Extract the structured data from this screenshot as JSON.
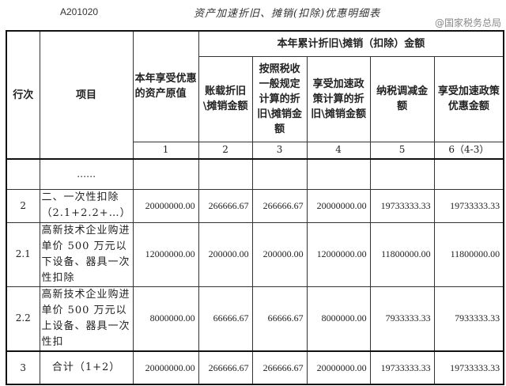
{
  "form_code": "A201020",
  "title": "资产加速折旧、摊销(扣除)优惠明细表",
  "header": {
    "row_no": "行次",
    "item": "项目",
    "original_value": "本年享受优惠的资产原值",
    "group": "本年累计折旧\\摊销（扣除）金额",
    "cols": [
      "账载折旧\\摊销金额",
      "按照税收一般规定计算的折旧\\摊销金额",
      "享受加速政策计算的折旧\\摊销金额",
      "纳税调减金额",
      "享受加速政策优惠金额"
    ],
    "col_numbers": [
      "1",
      "2",
      "3",
      "4",
      "5",
      "6（4-3）"
    ]
  },
  "ellipsis": "……",
  "rows": [
    {
      "no": "2",
      "item": "二、一次性扣除（2.1+2.2+…）",
      "values": [
        "20000000.00",
        "266666.67",
        "266666.67",
        "20000000.00",
        "19733333.33",
        "19733333.33"
      ]
    },
    {
      "no": "2.1",
      "item": "高新技术企业购进单价 500 万元以下设备、器具一次性扣除",
      "values": [
        "12000000.00",
        "200000.00",
        "200000.00",
        "12000000.00",
        "11800000.00",
        "11800000.00"
      ]
    },
    {
      "no": "2.2",
      "item": "高新技术企业购进单价 500 万元以上设备、器具一次性扣",
      "values": [
        "8000000.00",
        "66666.67",
        "66666.67",
        "8000000.00",
        "7933333.33",
        "7933333.33"
      ]
    },
    {
      "no": "3",
      "item": "合计（1+2）",
      "values": [
        "20000000.00",
        "266666.67",
        "266666.67",
        "20000000.00",
        "19733333.33",
        "19733333.33"
      ]
    }
  ],
  "watermark": "@国家税务总局"
}
